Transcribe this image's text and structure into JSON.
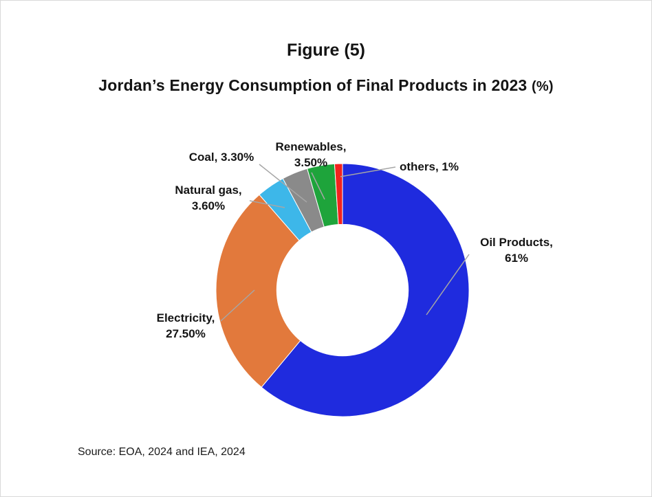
{
  "figure": {
    "caption": "Figure (5)",
    "title": "Jordan’s Energy Consumption of Final Products in 2023",
    "title_suffix": "(%)",
    "source": "Source: EOA, 2024 and IEA, 2024"
  },
  "chart_data": {
    "type": "pie",
    "subtype": "donut",
    "title": "Jordan’s Energy Consumption of Final Products in 2023 (%)",
    "start_angle_deg": 0,
    "direction": "clockwise",
    "inner_radius_ratio": 0.52,
    "legend_position": "none",
    "leader_line_color": "#A6A6A6",
    "slices": [
      {
        "name": "Oil Products",
        "value": 61,
        "color": "#1F2BDE",
        "label_line1": "Oil Products,",
        "label_line2": "61%"
      },
      {
        "name": "Electricity",
        "value": 27.5,
        "color": "#E2793C",
        "label_line1": "Electricity,",
        "label_line2": "27.50%"
      },
      {
        "name": "Natural gas",
        "value": 3.6,
        "color": "#3DB7E9",
        "label_line1": "Natural gas,",
        "label_line2": "3.60%"
      },
      {
        "name": "Coal",
        "value": 3.3,
        "color": "#8A8A8A",
        "label_line1": "Coal, 3.30%",
        "label_line2": ""
      },
      {
        "name": "Renewables",
        "value": 3.5,
        "color": "#1EA43B",
        "label_line1": "Renewables,",
        "label_line2": "3.50%"
      },
      {
        "name": "others",
        "value": 1,
        "color": "#F2231E",
        "label_line1": "others, 1%",
        "label_line2": ""
      }
    ]
  }
}
